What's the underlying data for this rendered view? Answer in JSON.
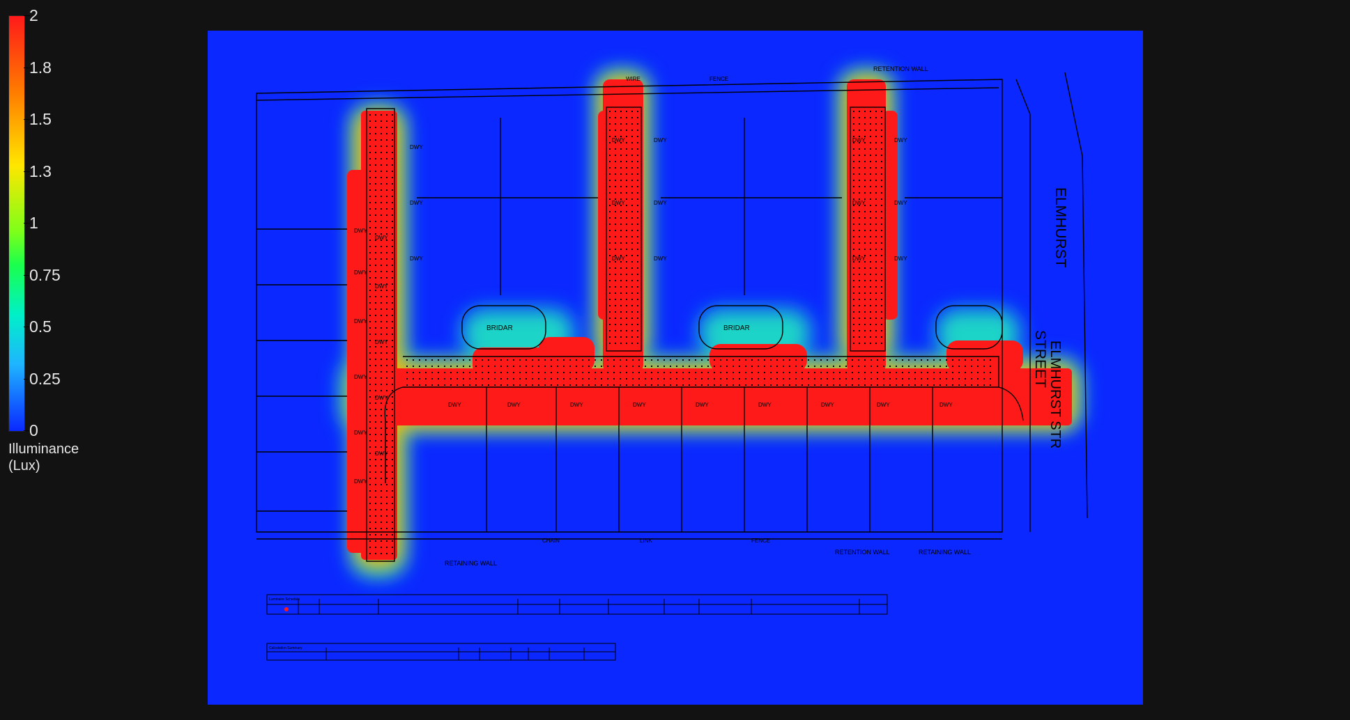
{
  "colors": {
    "background": "#121212",
    "field_low": "#0a28ff",
    "field_high": "#ff1a1a",
    "gradient": [
      "#ff1a1a",
      "#ff7a00",
      "#ffe600",
      "#7dff1a",
      "#1aff4d",
      "#00f0c8",
      "#1fb4ff",
      "#0a28ff"
    ]
  },
  "legend": {
    "ticks": [
      "2",
      "1.8",
      "1.5",
      "1.3",
      "1",
      "0.75",
      "0.5",
      "0.25",
      "0"
    ],
    "title_line1": "Illuminance",
    "title_line2": "(Lux)"
  },
  "plan": {
    "street_name_1": "ELMHURST",
    "street_name_2": "STREET",
    "street_name_3": "ELMHURST STR",
    "wall_label": "RETAINING WALL",
    "retention_wall_label": "RETENTION WALL",
    "fence_words": [
      "WIRE",
      "FENCE",
      "CHAIN",
      "LINK",
      "FENCE"
    ],
    "driveway_label": "DWY",
    "cul_de_sac_label": "BRIDAR",
    "luminaire_schedule_title": "Luminaire Schedule",
    "calc_summary_title": "Calculation Summary"
  }
}
